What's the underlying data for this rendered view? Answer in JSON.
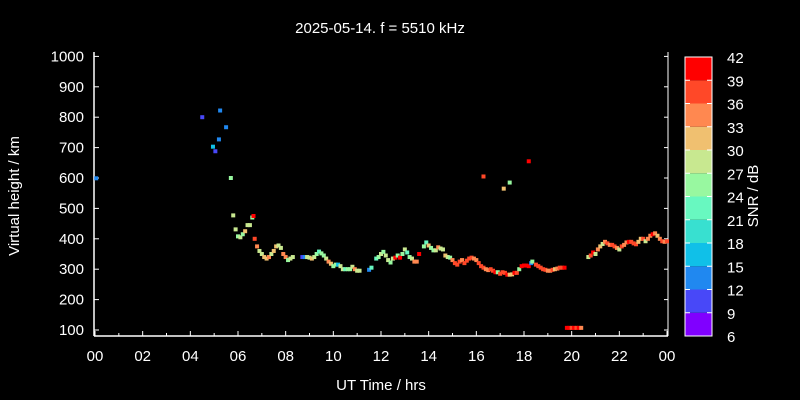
{
  "chart_data": {
    "type": "scatter",
    "title": "2025-05-14. f = 5510 kHz",
    "xlabel": "UT Time / hrs",
    "ylabel": "Virtual height / km",
    "xlim": [
      0,
      24
    ],
    "ylim": [
      80,
      1010
    ],
    "xticks": [
      "00",
      "02",
      "04",
      "06",
      "08",
      "10",
      "12",
      "14",
      "16",
      "18",
      "20",
      "22",
      "00"
    ],
    "yticks": [
      "100",
      "200",
      "300",
      "400",
      "500",
      "600",
      "700",
      "800",
      "900",
      "1000"
    ],
    "colorbar": {
      "label": "SNR / dB",
      "ticks": [
        "6",
        "9",
        "12",
        "15",
        "18",
        "21",
        "24",
        "27",
        "30",
        "33",
        "36",
        "39",
        "42"
      ],
      "colors": [
        "#8000ff",
        "#4848f8",
        "#2088f0",
        "#10c0e8",
        "#38e0d0",
        "#68f8c0",
        "#98f8a0",
        "#c8e890",
        "#f0c070",
        "#ff8850",
        "#ff4828",
        "#ff0000"
      ]
    },
    "points": [
      [
        0.05,
        599,
        13
      ],
      [
        4.5,
        800,
        10
      ],
      [
        5.25,
        822,
        13
      ],
      [
        5.5,
        767,
        13
      ],
      [
        5.2,
        727,
        13
      ],
      [
        4.95,
        703,
        16
      ],
      [
        5.05,
        688,
        10
      ],
      [
        5.7,
        600,
        25
      ],
      [
        5.8,
        477,
        28
      ],
      [
        5.9,
        431,
        28
      ],
      [
        6.0,
        408,
        25
      ],
      [
        6.1,
        405,
        28
      ],
      [
        6.2,
        415,
        25
      ],
      [
        6.3,
        425,
        31
      ],
      [
        6.4,
        445,
        28
      ],
      [
        6.5,
        445,
        28
      ],
      [
        6.6,
        470,
        25
      ],
      [
        6.65,
        475,
        40
      ],
      [
        6.7,
        400,
        37
      ],
      [
        6.8,
        375,
        34
      ],
      [
        6.9,
        360,
        28
      ],
      [
        7.0,
        350,
        28
      ],
      [
        7.1,
        340,
        31
      ],
      [
        7.2,
        335,
        31
      ],
      [
        7.3,
        340,
        34
      ],
      [
        7.4,
        350,
        28
      ],
      [
        7.5,
        360,
        31
      ],
      [
        7.6,
        375,
        31
      ],
      [
        7.7,
        378,
        28
      ],
      [
        7.8,
        370,
        28
      ],
      [
        7.9,
        350,
        34
      ],
      [
        8.0,
        340,
        34
      ],
      [
        8.1,
        330,
        25
      ],
      [
        8.2,
        335,
        28
      ],
      [
        8.3,
        340,
        28
      ],
      [
        8.7,
        340,
        10
      ],
      [
        8.8,
        340,
        13
      ],
      [
        8.9,
        340,
        28
      ],
      [
        9.0,
        338,
        28
      ],
      [
        9.1,
        335,
        31
      ],
      [
        9.2,
        340,
        28
      ],
      [
        9.3,
        350,
        25
      ],
      [
        9.4,
        358,
        22
      ],
      [
        9.5,
        352,
        25
      ],
      [
        9.6,
        345,
        25
      ],
      [
        9.7,
        335,
        28
      ],
      [
        9.8,
        325,
        34
      ],
      [
        9.9,
        318,
        31
      ],
      [
        10.0,
        310,
        25
      ],
      [
        10.1,
        315,
        25
      ],
      [
        10.2,
        315,
        16
      ],
      [
        10.3,
        310,
        28
      ],
      [
        10.4,
        300,
        28
      ],
      [
        10.5,
        300,
        22
      ],
      [
        10.6,
        300,
        25
      ],
      [
        10.7,
        300,
        25
      ],
      [
        10.8,
        308,
        28
      ],
      [
        10.9,
        300,
        34
      ],
      [
        11.0,
        295,
        28
      ],
      [
        11.1,
        295,
        28
      ],
      [
        11.5,
        298,
        13
      ],
      [
        11.6,
        305,
        22
      ],
      [
        11.8,
        335,
        22
      ],
      [
        11.9,
        340,
        25
      ],
      [
        12.0,
        350,
        28
      ],
      [
        12.1,
        357,
        25
      ],
      [
        12.2,
        345,
        28
      ],
      [
        12.3,
        330,
        28
      ],
      [
        12.4,
        322,
        25
      ],
      [
        12.5,
        335,
        28
      ],
      [
        12.6,
        338,
        40
      ],
      [
        12.7,
        345,
        25
      ],
      [
        12.8,
        338,
        40
      ],
      [
        12.9,
        350,
        25
      ],
      [
        13.0,
        365,
        28
      ],
      [
        13.1,
        355,
        22
      ],
      [
        13.2,
        340,
        25
      ],
      [
        13.3,
        335,
        28
      ],
      [
        13.4,
        325,
        34
      ],
      [
        13.5,
        325,
        34
      ],
      [
        13.6,
        350,
        40
      ],
      [
        13.8,
        375,
        25
      ],
      [
        13.9,
        388,
        22
      ],
      [
        14.0,
        378,
        31
      ],
      [
        14.1,
        370,
        25
      ],
      [
        14.2,
        362,
        25
      ],
      [
        14.3,
        362,
        28
      ],
      [
        14.4,
        372,
        34
      ],
      [
        14.5,
        368,
        28
      ],
      [
        14.6,
        365,
        28
      ],
      [
        14.7,
        345,
        31
      ],
      [
        14.8,
        340,
        28
      ],
      [
        14.9,
        338,
        25
      ],
      [
        15.0,
        330,
        34
      ],
      [
        15.1,
        320,
        37
      ],
      [
        15.2,
        315,
        37
      ],
      [
        15.3,
        325,
        37
      ],
      [
        15.4,
        330,
        34
      ],
      [
        15.5,
        320,
        37
      ],
      [
        15.6,
        328,
        37
      ],
      [
        15.7,
        335,
        37
      ],
      [
        15.8,
        338,
        37
      ],
      [
        15.9,
        335,
        34
      ],
      [
        16.0,
        330,
        34
      ],
      [
        16.1,
        320,
        37
      ],
      [
        16.2,
        310,
        37
      ],
      [
        16.3,
        305,
        37
      ],
      [
        16.4,
        300,
        34
      ],
      [
        16.5,
        297,
        34
      ],
      [
        16.6,
        300,
        37
      ],
      [
        16.7,
        295,
        37
      ],
      [
        16.8,
        290,
        40
      ],
      [
        16.9,
        290,
        25
      ],
      [
        17.0,
        285,
        37
      ],
      [
        17.1,
        290,
        37
      ],
      [
        17.2,
        288,
        37
      ],
      [
        17.3,
        282,
        40
      ],
      [
        17.4,
        282,
        31
      ],
      [
        17.5,
        283,
        31
      ],
      [
        17.6,
        288,
        40
      ],
      [
        17.7,
        288,
        37
      ],
      [
        17.8,
        300,
        25
      ],
      [
        17.9,
        310,
        40
      ],
      [
        18.0,
        312,
        40
      ],
      [
        18.1,
        312,
        40
      ],
      [
        18.2,
        310,
        40
      ],
      [
        18.3,
        320,
        13
      ],
      [
        18.35,
        325,
        25
      ],
      [
        18.5,
        315,
        37
      ],
      [
        18.6,
        310,
        37
      ],
      [
        18.7,
        305,
        37
      ],
      [
        18.8,
        300,
        37
      ],
      [
        18.9,
        298,
        37
      ],
      [
        19.0,
        295,
        34
      ],
      [
        19.1,
        295,
        34
      ],
      [
        19.2,
        298,
        37
      ],
      [
        19.3,
        300,
        31
      ],
      [
        19.4,
        302,
        34
      ],
      [
        19.5,
        305,
        37
      ],
      [
        19.6,
        305,
        37
      ],
      [
        19.7,
        305,
        40
      ],
      [
        16.3,
        605,
        37
      ],
      [
        17.15,
        565,
        31
      ],
      [
        17.4,
        585,
        25
      ],
      [
        18.2,
        655,
        40
      ],
      [
        19.8,
        107,
        40
      ],
      [
        19.9,
        107,
        40
      ],
      [
        20.0,
        107,
        37
      ],
      [
        20.1,
        107,
        40
      ],
      [
        20.2,
        107,
        37
      ],
      [
        20.3,
        107,
        40
      ],
      [
        20.4,
        107,
        34
      ],
      [
        20.7,
        340,
        28
      ],
      [
        20.8,
        345,
        37
      ],
      [
        20.9,
        355,
        40
      ],
      [
        21.0,
        350,
        28
      ],
      [
        21.1,
        365,
        34
      ],
      [
        21.2,
        375,
        31
      ],
      [
        21.3,
        383,
        28
      ],
      [
        21.4,
        390,
        34
      ],
      [
        21.5,
        385,
        37
      ],
      [
        21.6,
        380,
        34
      ],
      [
        21.7,
        380,
        37
      ],
      [
        21.8,
        375,
        37
      ],
      [
        21.9,
        370,
        34
      ],
      [
        22.0,
        365,
        28
      ],
      [
        22.1,
        375,
        37
      ],
      [
        22.2,
        380,
        34
      ],
      [
        22.3,
        388,
        34
      ],
      [
        22.4,
        390,
        40
      ],
      [
        22.5,
        390,
        37
      ],
      [
        22.6,
        385,
        37
      ],
      [
        22.7,
        382,
        37
      ],
      [
        22.8,
        390,
        31
      ],
      [
        22.9,
        400,
        31
      ],
      [
        23.0,
        400,
        37
      ],
      [
        23.1,
        392,
        28
      ],
      [
        23.2,
        400,
        34
      ],
      [
        23.3,
        410,
        34
      ],
      [
        23.4,
        415,
        40
      ],
      [
        23.5,
        418,
        34
      ],
      [
        23.6,
        410,
        31
      ],
      [
        23.7,
        400,
        34
      ],
      [
        23.8,
        392,
        37
      ],
      [
        23.9,
        390,
        34
      ],
      [
        24.0,
        392,
        37
      ]
    ]
  }
}
